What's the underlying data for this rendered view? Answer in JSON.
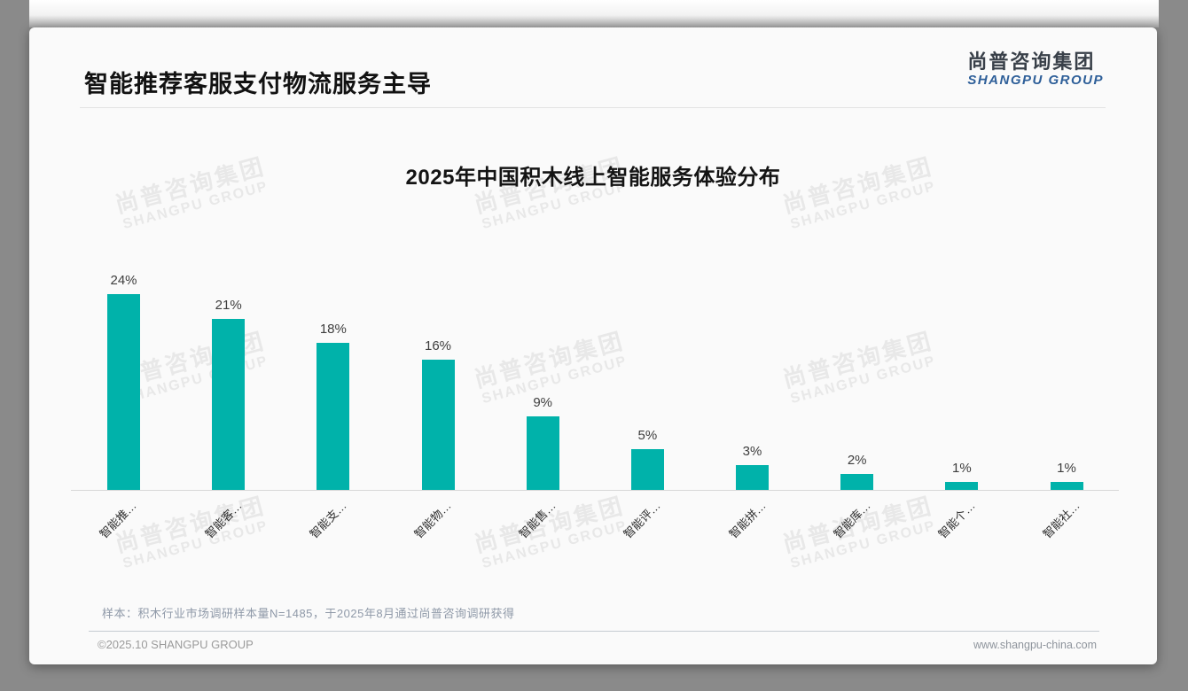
{
  "slide": {
    "header": {
      "title": "智能推荐客服支付物流服务主导"
    },
    "logo": {
      "cn": "尚普咨询集团",
      "en": "SHANGPU GROUP"
    },
    "watermark": {
      "cn": "尚普咨询集团",
      "en": "SHANGPU GROUP"
    },
    "footnote": "样本：积木行业市场调研样本量N=1485，于2025年8月通过尚普咨询调研获得",
    "footer": {
      "copyright": "©2025.10 SHANGPU GROUP",
      "url": "www.shangpu-china.com"
    }
  },
  "chart_data": {
    "type": "bar",
    "title": "2025年中国积木线上智能服务体验分布",
    "categories": [
      "智能推…",
      "智能客…",
      "智能支…",
      "智能物…",
      "智能售…",
      "智能评…",
      "智能拼…",
      "智能库…",
      "智能个…",
      "智能社…"
    ],
    "values": [
      24,
      21,
      18,
      16,
      9,
      5,
      3,
      2,
      1,
      1
    ],
    "value_labels": [
      "24%",
      "21%",
      "18%",
      "16%",
      "9%",
      "5%",
      "3%",
      "2%",
      "1%",
      "1%"
    ],
    "unit": "%",
    "bar_color": "#00B2AA",
    "xlabel": "",
    "ylabel": "",
    "ylim": [
      0,
      26
    ],
    "grid": false,
    "legend": false,
    "x_label_rotation": -45
  }
}
